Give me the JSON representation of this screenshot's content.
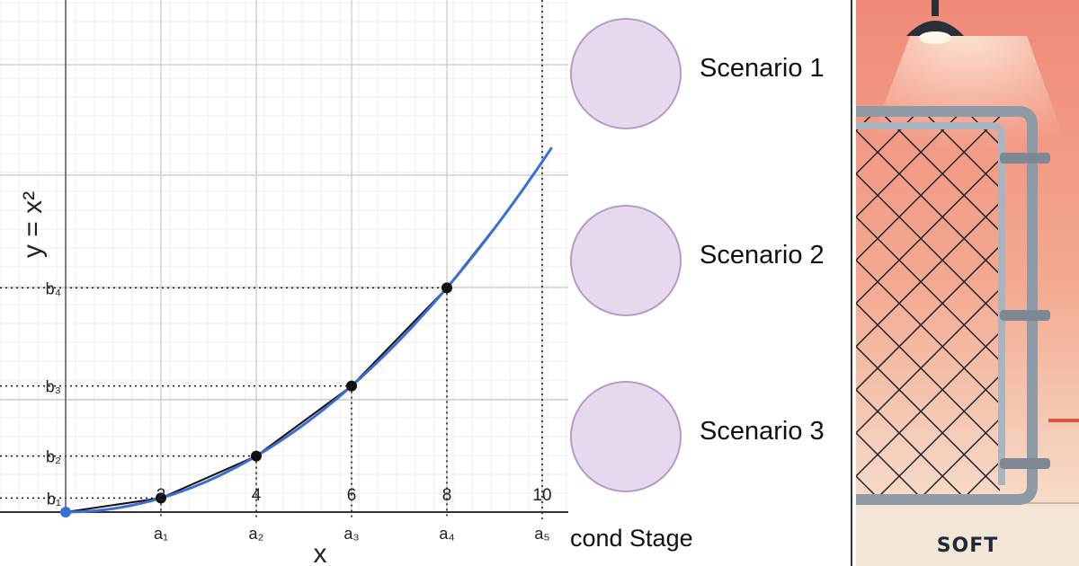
{
  "graph": {
    "equation_label": "y = x²",
    "x_axis_label": "x",
    "x_ticks": [
      "2",
      "4",
      "6",
      "8",
      "10"
    ],
    "a_labels": [
      "a₁",
      "a₂",
      "a₃",
      "a₄",
      "a₅"
    ],
    "b_labels": [
      "b₁",
      "b₂",
      "b₃",
      "b₄"
    ],
    "colors": {
      "curve": "#3a6fd8",
      "secant": "#111111",
      "grid": "#dddddd"
    }
  },
  "scenarios": {
    "items": [
      {
        "label": "Scenario 1"
      },
      {
        "label": "Scenario 2"
      },
      {
        "label": "Scenario 3"
      }
    ],
    "stage_label": "cond Stage",
    "colors": {
      "circle_fill": "#e6d9ee",
      "circle_border": "#b69ac8"
    }
  },
  "artwork": {
    "caption": "SOFT",
    "colors": {
      "wall": "#f2a48e",
      "floor": "#f4e6d6",
      "pipe": "#8e9aa6"
    }
  }
}
